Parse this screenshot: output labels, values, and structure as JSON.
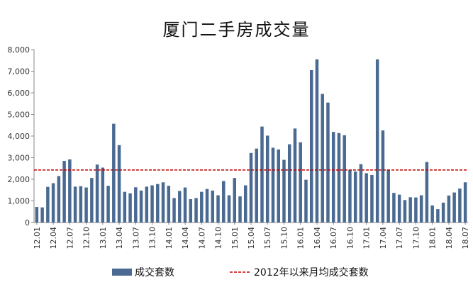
{
  "chart_data": {
    "type": "bar",
    "title": "厦门二手房成交量",
    "categories": [
      "12.01",
      "12.02",
      "12.03",
      "12.04",
      "12.05",
      "12.06",
      "12.07",
      "12.08",
      "12.09",
      "12.10",
      "12.11",
      "12.12",
      "13.01",
      "13.02",
      "13.03",
      "13.04",
      "13.05",
      "13.06",
      "13.07",
      "13.08",
      "13.09",
      "13.10",
      "13.11",
      "13.12",
      "14.01",
      "14.02",
      "14.03",
      "14.04",
      "14.05",
      "14.06",
      "14.07",
      "14.08",
      "14.09",
      "14.10",
      "14.11",
      "14.12",
      "15.01",
      "15.02",
      "15.03",
      "15.04",
      "15.05",
      "15.06",
      "15.07",
      "15.08",
      "15.09",
      "15.10",
      "15.11",
      "15.12",
      "16.01",
      "16.02",
      "16.03",
      "16.04",
      "16.05",
      "16.06",
      "16.07",
      "16.08",
      "16.09",
      "16.10",
      "16.11",
      "16.12",
      "17.01",
      "17.02",
      "17.03",
      "17.04",
      "17.05",
      "17.06",
      "17.07",
      "17.08",
      "17.09",
      "17.10",
      "17.11",
      "17.12",
      "18.01",
      "18.02",
      "18.03",
      "18.04",
      "18.05",
      "18.06",
      "18.07"
    ],
    "x_tick_labels": [
      "12.01",
      "12.04",
      "12.07",
      "12.10",
      "13.01",
      "13.04",
      "13.07",
      "13.10",
      "14.01",
      "14.04",
      "14.07",
      "14.10",
      "15.01",
      "15.04",
      "15.07",
      "15.10",
      "16.01",
      "16.04",
      "16.07",
      "16.10",
      "17.01",
      "17.04",
      "17.07",
      "17.10",
      "18.01",
      "18.04",
      "18.07"
    ],
    "series": [
      {
        "name": "成交套数",
        "color": "#4a6a92",
        "values": [
          720,
          700,
          1650,
          1820,
          2150,
          2850,
          2920,
          1660,
          1680,
          1620,
          2060,
          2680,
          2540,
          1700,
          4570,
          3580,
          1420,
          1350,
          1630,
          1480,
          1660,
          1720,
          1780,
          1860,
          1700,
          1130,
          1460,
          1620,
          1080,
          1130,
          1420,
          1550,
          1480,
          1260,
          1920,
          1260,
          2060,
          1210,
          1720,
          3220,
          3420,
          4440,
          4020,
          3460,
          3380,
          2900,
          3620,
          4350,
          3710,
          1980,
          7050,
          7550,
          5950,
          5550,
          4190,
          4140,
          4040,
          2430,
          2360,
          2700,
          2280,
          2200,
          7550,
          4260,
          2440,
          1370,
          1290,
          1040,
          1170,
          1160,
          1260,
          2800,
          790,
          620,
          920,
          1250,
          1390,
          1570,
          1860
        ]
      }
    ],
    "reference_line": {
      "name": "2012年以来月均成交套数",
      "value": 2430,
      "color": "#c00000"
    },
    "ylim": [
      0,
      8000
    ],
    "y_ticks": [
      0,
      1000,
      2000,
      3000,
      4000,
      5000,
      6000,
      7000,
      8000
    ],
    "y_tick_labels": [
      "0",
      "1,000",
      "2,000",
      "3,000",
      "4,000",
      "5,000",
      "6,000",
      "7,000",
      "8,000"
    ],
    "grid": false,
    "legend_position": "bottom",
    "xlabel": "",
    "ylabel": ""
  }
}
